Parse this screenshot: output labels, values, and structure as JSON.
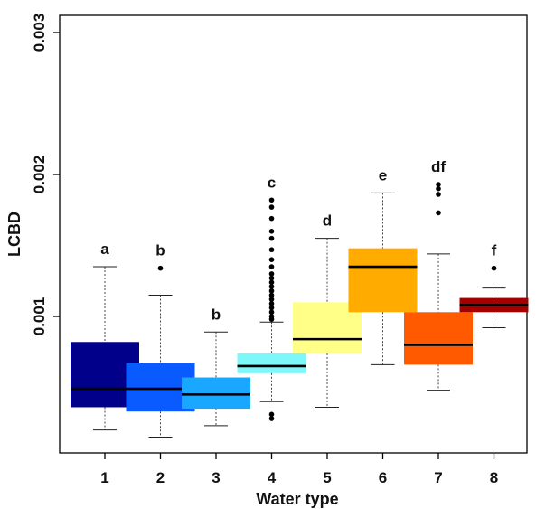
{
  "chart_data": {
    "type": "boxplot",
    "xlabel": "Water type",
    "ylabel": "LCBD",
    "ylim": [
      0.0001,
      0.003
    ],
    "yticks": [
      0.001,
      0.002,
      0.003
    ],
    "ytick_labels": [
      "0.001",
      "0.002",
      "0.003"
    ],
    "grid": false,
    "legend": "none",
    "categories": [
      "1",
      "2",
      "3",
      "4",
      "5",
      "6",
      "7",
      "8"
    ],
    "boxes": [
      {
        "category": "1",
        "letter": "a",
        "color": "#00008b",
        "whisker_low": 0.0002,
        "q1": 0.00036,
        "median": 0.00049,
        "q3": 0.00082,
        "whisker_high": 0.00135,
        "outliers": []
      },
      {
        "category": "2",
        "letter": "b",
        "color": "#0a5bff",
        "whisker_low": 0.00015,
        "q1": 0.00033,
        "median": 0.00049,
        "q3": 0.00067,
        "whisker_high": 0.00115,
        "outliers": [
          0.00134
        ]
      },
      {
        "category": "3",
        "letter": "b",
        "color": "#1aa7ff",
        "whisker_low": 0.00023,
        "q1": 0.00035,
        "median": 0.00045,
        "q3": 0.00057,
        "whisker_high": 0.00089,
        "outliers": []
      },
      {
        "category": "4",
        "letter": "c",
        "color": "#7df7f7",
        "whisker_low": 0.0004,
        "q1": 0.0006,
        "median": 0.00065,
        "q3": 0.00074,
        "whisker_high": 0.00096,
        "outliers": [
          0.00028,
          0.00031,
          0.00098,
          0.001,
          0.00103,
          0.00106,
          0.00109,
          0.00112,
          0.00115,
          0.00118,
          0.00121,
          0.00124,
          0.00127,
          0.0013,
          0.00135,
          0.0014,
          0.00147,
          0.00155,
          0.0016,
          0.00169,
          0.00177,
          0.00182
        ]
      },
      {
        "category": "5",
        "letter": "d",
        "color": "#ffff88",
        "whisker_low": 0.00036,
        "q1": 0.00074,
        "median": 0.00084,
        "q3": 0.0011,
        "whisker_high": 0.00155,
        "outliers": []
      },
      {
        "category": "6",
        "letter": "e",
        "color": "#ffab00",
        "whisker_low": 0.00066,
        "q1": 0.00103,
        "median": 0.00135,
        "q3": 0.00148,
        "whisker_high": 0.00187,
        "outliers": []
      },
      {
        "category": "7",
        "letter": "df",
        "color": "#ff5a00",
        "whisker_low": 0.00048,
        "q1": 0.00066,
        "median": 0.0008,
        "q3": 0.00103,
        "whisker_high": 0.00144,
        "outliers": [
          0.00173,
          0.00186,
          0.0019,
          0.00193
        ]
      },
      {
        "category": "8",
        "letter": "f",
        "color": "#a50000",
        "whisker_low": 0.00092,
        "q1": 0.00103,
        "median": 0.00108,
        "q3": 0.00113,
        "whisker_high": 0.0012,
        "outliers": [
          0.00134
        ]
      }
    ]
  }
}
